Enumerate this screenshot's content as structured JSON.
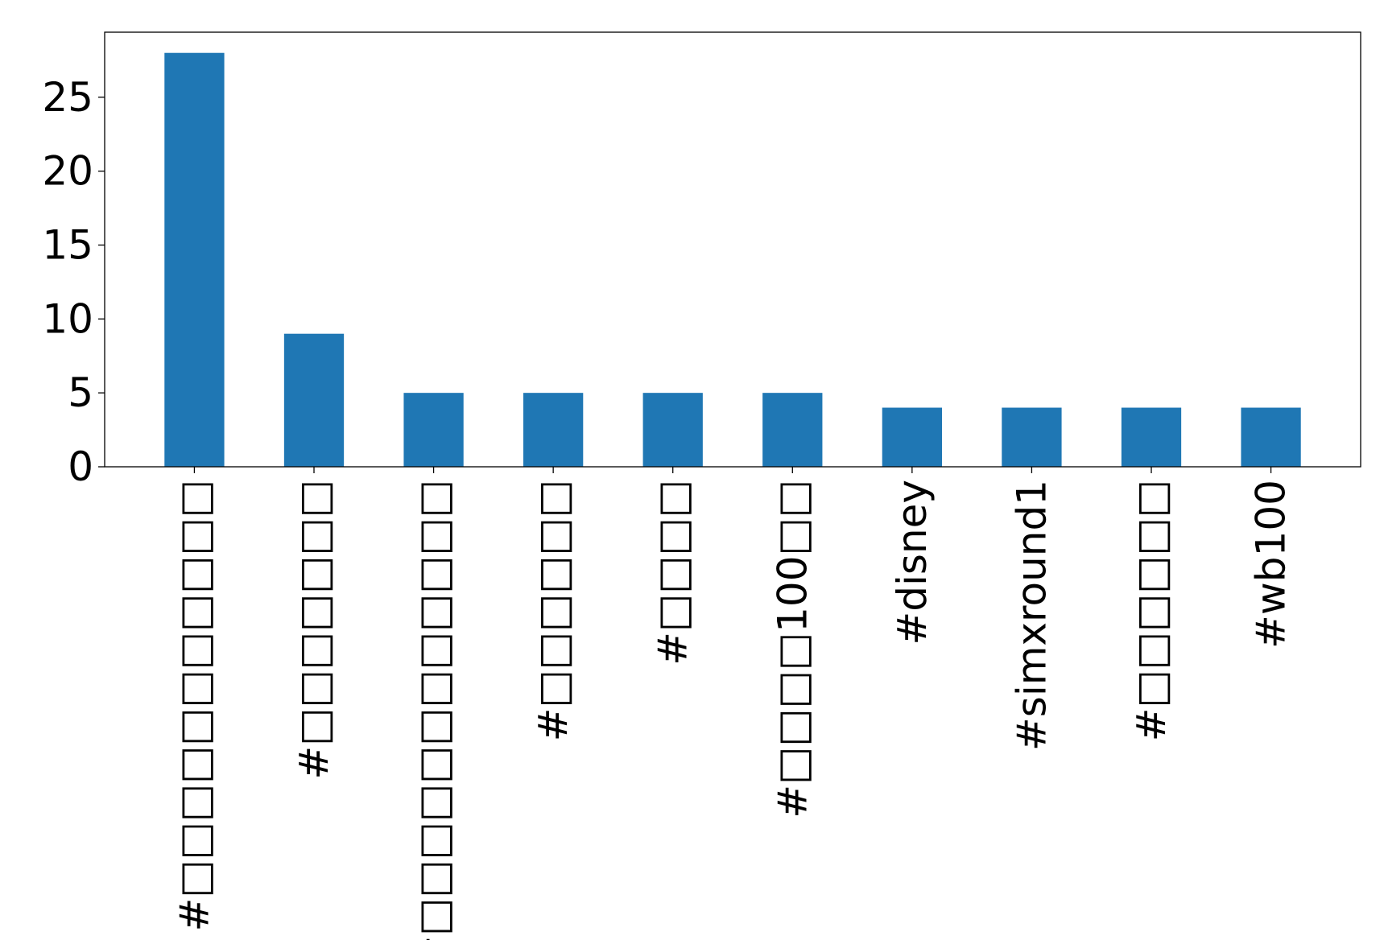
{
  "chart_data": {
    "type": "bar",
    "title": "",
    "xlabel": "",
    "ylabel": "",
    "categories": [
      "#□□□□□□□□□□□",
      "#□□□□□□□",
      "#□□□□□□□□□□□□",
      "#□□□□□□",
      "#□□□□",
      "#□□□□100□□",
      "#disney",
      "#simxround1",
      "#□□□□□□",
      "#wb100"
    ],
    "values": [
      28,
      9,
      5,
      5,
      5,
      5,
      4,
      4,
      4,
      4
    ],
    "ylim": [
      0,
      29.4
    ],
    "yticks": [
      "0",
      "5",
      "10",
      "15",
      "20",
      "25"
    ],
    "ytick_values": [
      0,
      5,
      10,
      15,
      20,
      25
    ],
    "grid": false,
    "legend": "none",
    "colors": {
      "bar": "#1f77b4",
      "axes": "#000000",
      "background": "#ffffff"
    }
  }
}
